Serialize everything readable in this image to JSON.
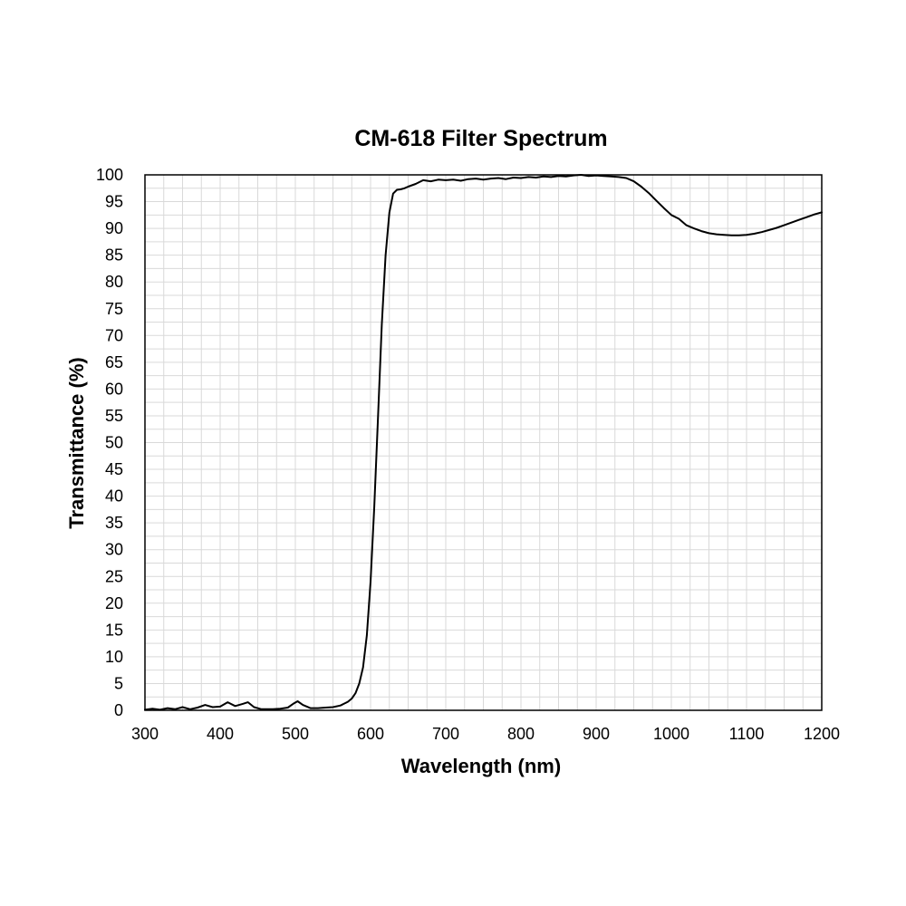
{
  "chart_data": {
    "type": "line",
    "title": "CM-618 Filter Spectrum",
    "xlabel": "Wavelength (nm)",
    "ylabel": "Transmittance (%)",
    "xlim": [
      300,
      1200
    ],
    "ylim": [
      0,
      100
    ],
    "x_major_ticks": [
      300,
      400,
      500,
      600,
      700,
      800,
      900,
      1000,
      1100,
      1200
    ],
    "y_major_ticks": [
      0,
      5,
      10,
      15,
      20,
      25,
      30,
      35,
      40,
      45,
      50,
      55,
      60,
      65,
      70,
      75,
      80,
      85,
      90,
      95,
      100
    ],
    "x_tick_labels": [
      "300",
      "400",
      "500",
      "600",
      "700",
      "800",
      "900",
      "1000",
      "1100",
      "1200"
    ],
    "y_tick_labels": [
      "0",
      "5",
      "10",
      "15",
      "20",
      "25",
      "30",
      "35",
      "40",
      "45",
      "50",
      "55",
      "60",
      "65",
      "70",
      "75",
      "80",
      "85",
      "90",
      "95",
      "100"
    ],
    "grid": true,
    "legend": "none",
    "line_color": "#000000",
    "grid_color": "#d9d9d9",
    "series": [
      {
        "x": [
          300,
          310,
          320,
          330,
          340,
          350,
          360,
          370,
          380,
          390,
          400,
          410,
          420,
          430,
          437,
          445,
          455,
          470,
          480,
          490,
          497,
          503,
          510,
          520,
          530,
          540,
          550,
          560,
          570,
          575,
          580,
          585,
          590,
          595,
          600,
          605,
          610,
          615,
          620,
          625,
          630,
          635,
          640,
          645,
          650,
          660,
          670,
          680,
          690,
          700,
          710,
          720,
          730,
          740,
          750,
          760,
          770,
          780,
          790,
          800,
          810,
          820,
          830,
          840,
          850,
          860,
          870,
          880,
          890,
          900,
          910,
          920,
          930,
          940,
          950,
          960,
          970,
          980,
          990,
          1000,
          1010,
          1020,
          1030,
          1040,
          1050,
          1060,
          1070,
          1080,
          1090,
          1100,
          1110,
          1120,
          1130,
          1140,
          1150,
          1160,
          1170,
          1180,
          1190,
          1200
        ],
        "y": [
          0.1,
          0.3,
          0.1,
          0.4,
          0.2,
          0.6,
          0.2,
          0.5,
          1.0,
          0.6,
          0.7,
          1.5,
          0.8,
          1.2,
          1.5,
          0.6,
          0.2,
          0.2,
          0.3,
          0.5,
          1.2,
          1.7,
          1.0,
          0.4,
          0.4,
          0.5,
          0.6,
          0.9,
          1.6,
          2.2,
          3.2,
          5.0,
          8.0,
          14.0,
          24.0,
          38.0,
          55.0,
          72.0,
          85.0,
          93.0,
          96.5,
          97.2,
          97.3,
          97.5,
          97.8,
          98.3,
          99.0,
          98.8,
          99.1,
          99.0,
          99.1,
          98.9,
          99.2,
          99.3,
          99.1,
          99.3,
          99.4,
          99.2,
          99.5,
          99.4,
          99.6,
          99.5,
          99.7,
          99.6,
          99.8,
          99.7,
          99.9,
          100.0,
          99.8,
          99.9,
          99.8,
          99.7,
          99.6,
          99.4,
          98.8,
          97.8,
          96.6,
          95.2,
          93.8,
          92.5,
          91.8,
          90.6,
          90.0,
          89.5,
          89.1,
          88.9,
          88.8,
          88.7,
          88.7,
          88.8,
          89.0,
          89.3,
          89.7,
          90.1,
          90.6,
          91.1,
          91.6,
          92.1,
          92.6,
          93.0
        ]
      }
    ]
  }
}
